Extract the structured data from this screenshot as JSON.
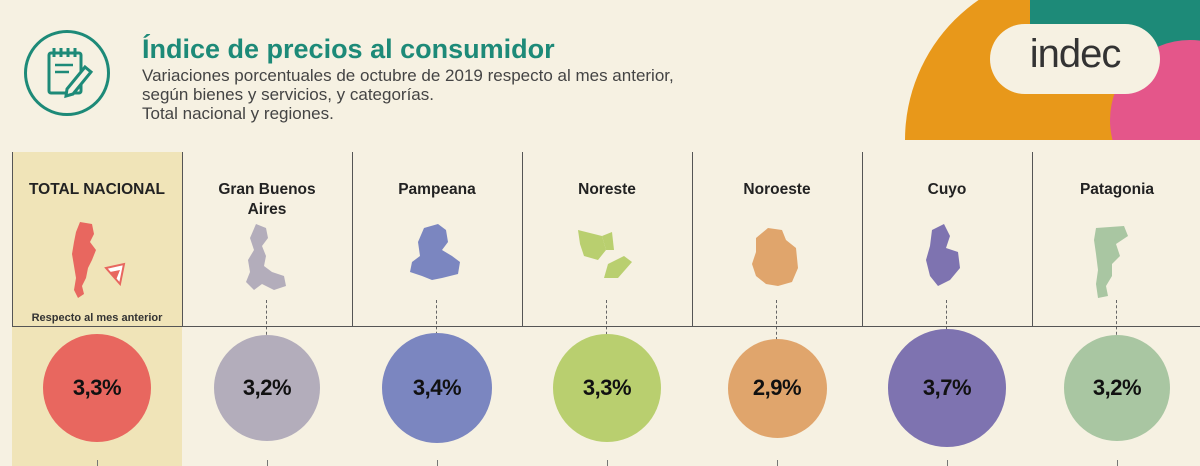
{
  "header": {
    "title": "Índice de precios al consumidor",
    "subtitle_lines": [
      "Variaciones porcentuales de octubre de 2019 respecto al mes anterior,",
      "según bienes y servicios, y categorías.",
      "Total nacional y regiones."
    ],
    "logo": "indec",
    "icon": "clipboard-pencil-icon"
  },
  "colors": {
    "background": "#f6f1e2",
    "highlight": "#f0e4b8",
    "title": "#1d8a78",
    "logo_orange": "#e8981a",
    "logo_green": "#1d8a78",
    "logo_pink": "#e4568a"
  },
  "note": "Respecto al mes anterior",
  "chart_data": {
    "type": "bubble",
    "unit": "%",
    "categories": [
      "TOTAL NACIONAL",
      "Gran Buenos Aires",
      "Pampeana",
      "Noreste",
      "Noroeste",
      "Cuyo",
      "Patagonia"
    ],
    "values": [
      3.3,
      3.2,
      3.4,
      3.3,
      2.9,
      3.7,
      3.2
    ],
    "labels": [
      "3,3%",
      "3,2%",
      "3,4%",
      "3,3%",
      "2,9%",
      "3,7%",
      "3,2%"
    ],
    "colors": [
      "#e8675f",
      "#b3adbb",
      "#7b86c0",
      "#b9cf6f",
      "#e0a56c",
      "#7e73b0",
      "#a9c6a2"
    ]
  },
  "regions": [
    {
      "name": "TOTAL NACIONAL",
      "icon": "argentina-map-icon"
    },
    {
      "name": "Gran Buenos Aires",
      "icon": "gran-buenos-aires-map-icon"
    },
    {
      "name": "Pampeana",
      "icon": "pampeana-map-icon"
    },
    {
      "name": "Noreste",
      "icon": "noreste-map-icon"
    },
    {
      "name": "Noroeste",
      "icon": "noroeste-map-icon"
    },
    {
      "name": "Cuyo",
      "icon": "cuyo-map-icon"
    },
    {
      "name": "Patagonia",
      "icon": "patagonia-map-icon"
    }
  ]
}
